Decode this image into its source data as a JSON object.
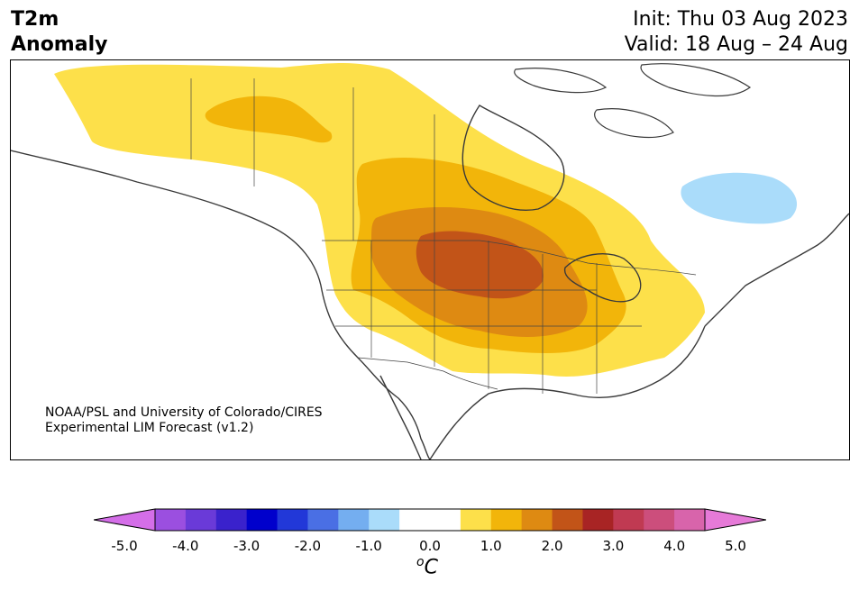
{
  "header": {
    "variable_line1": "T2m",
    "variable_line2": "Anomaly",
    "init": "Init: Thu 03 Aug 2023",
    "valid": "Valid: 18 Aug – 24 Aug"
  },
  "credit": {
    "line1": "NOAA/PSL and University of Colorado/CIRES",
    "line2": "Experimental LIM Forecast (v1.2)"
  },
  "colorbar": {
    "ticks": [
      "-5.0",
      "-4.0",
      "-3.0",
      "-2.0",
      "-1.0",
      "0.0",
      "1.0",
      "2.0",
      "3.0",
      "4.0",
      "5.0"
    ],
    "unit_sup": "o",
    "unit": "C",
    "colors": [
      "#d46ee8",
      "#9b4fe0",
      "#6a3ad8",
      "#3a22cc",
      "#0000cc",
      "#2238d8",
      "#4a6fe4",
      "#74aef0",
      "#aadcfa",
      "#ffffff",
      "#ffffff",
      "#fde04a",
      "#f2b50a",
      "#de8a12",
      "#c25418",
      "#a82424",
      "#c03a52",
      "#cc4e7c",
      "#d864ab",
      "#e67ad8"
    ]
  }
}
